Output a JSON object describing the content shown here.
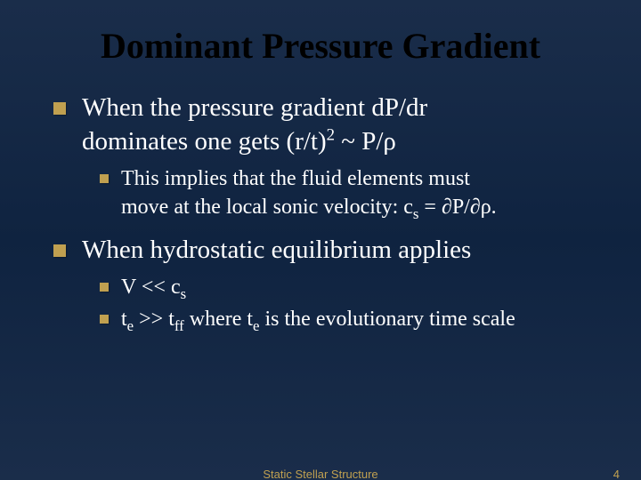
{
  "colors": {
    "background_top": "#1a2d4a",
    "background_mid": "#0f2340",
    "title_color": "#000000",
    "text_color": "#ffffff",
    "bullet_color": "#c0a050",
    "footer_color": "#c0a050"
  },
  "typography": {
    "title_fontsize": 40,
    "l1_fontsize": 29,
    "l2_fontsize": 24,
    "footer_fontsize": 13,
    "title_weight": "bold",
    "font_family": "Times New Roman"
  },
  "title": "Dominant Pressure Gradient",
  "bullets": {
    "b1": {
      "line1": "When the pressure gradient dP/dr",
      "line2_a": "dominates one gets (r/t)",
      "line2_sup": "2",
      "line2_b": "  ~ P/ρ"
    },
    "b1_sub1": {
      "line1": "This implies that the fluid elements must",
      "line2_a": "move at the local sonic velocity: c",
      "line2_sub": "s",
      "line2_b": " = ∂P/∂ρ."
    },
    "b2": "When hydrostatic equilibrium applies",
    "b2_sub1": {
      "a": "V << c",
      "sub": "s"
    },
    "b2_sub2": {
      "a": "t",
      "sub_a": "e",
      "b": " >> t",
      "sub_b": "ff",
      "c": " where t",
      "sub_c": "e",
      "d": " is the evolutionary time scale"
    }
  },
  "footer": {
    "center": "Static Stellar Structure",
    "page": "4"
  }
}
